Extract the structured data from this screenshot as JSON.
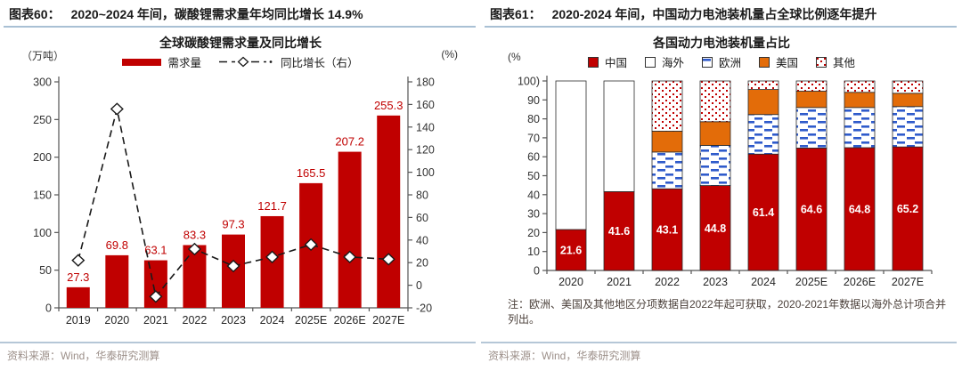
{
  "panels": [
    {
      "header_label": "图表60：",
      "header_title": "2020~2024 年间，碳酸锂需求量年均同比增长 14.9%",
      "source": "资料来源：Wind，华泰研究测算"
    },
    {
      "header_label": "图表61：",
      "header_title": "2020-2024 年间，中国动力电池装机量占全球比例逐年提升",
      "note": "注：欧洲、美国及其他地区分项数据自2022年起可获取，2020-2021年数据以海外总计项合并列出。",
      "source": "资料来源：Wind，华泰研究测算"
    }
  ],
  "colors": {
    "bar_red": "#c00000",
    "us_orange": "#e36c09",
    "eu_blue": "#2f5bcb",
    "header_rule": "#a9c0d4",
    "source_text": "#9c8f89",
    "note_text": "#4a3f39",
    "axis": "#555555",
    "label_white": "#ffffff"
  },
  "chart_data": [
    {
      "id": "lithium-carbonate-demand",
      "type": "bar",
      "title": "全球碳酸锂需求量及同比增长",
      "categories": [
        "2019",
        "2020",
        "2021",
        "2022",
        "2023",
        "2024",
        "2025E",
        "2026E",
        "2027E"
      ],
      "series": [
        {
          "name": "需求量",
          "type": "bar",
          "axis": "left",
          "color": "#c00000",
          "values": [
            27.3,
            69.8,
            63.1,
            83.3,
            97.3,
            121.7,
            165.5,
            207.2,
            255.3
          ]
        },
        {
          "name": "同比增长（右）",
          "type": "line",
          "axis": "right",
          "color": "#1a1a1a",
          "marker": "diamond",
          "values": [
            22,
            156,
            -10,
            32,
            17,
            25,
            36,
            25,
            23
          ]
        }
      ],
      "left_axis": {
        "unit_label": "（万吨）",
        "min": 0,
        "max": 300,
        "step": 50
      },
      "right_axis": {
        "unit_label": "(%)",
        "min": -20,
        "max": 180,
        "step": 20
      },
      "legend_position": "top",
      "grid": false
    },
    {
      "id": "battery-installation-share",
      "type": "stacked-bar",
      "title": "各国动力电池装机量占比",
      "categories": [
        "2020",
        "2021",
        "2022",
        "2023",
        "2024",
        "2025E",
        "2026E",
        "2027E"
      ],
      "series": [
        {
          "name": "中国",
          "style": "solid-red",
          "color": "#c00000",
          "labels": true,
          "values": [
            21.6,
            41.6,
            43.1,
            44.8,
            61.4,
            64.6,
            64.8,
            65.2
          ]
        },
        {
          "name": "海外",
          "style": "solid-white",
          "color": "#ffffff",
          "values": [
            78.4,
            58.4,
            0,
            0,
            0,
            0,
            0,
            0
          ]
        },
        {
          "name": "欧洲",
          "style": "blue-dash",
          "color": "#2f5bcb",
          "values": [
            0,
            0,
            19.4,
            21.2,
            20.9,
            21.4,
            21.2,
            21.3
          ]
        },
        {
          "name": "美国",
          "style": "solid-orange",
          "color": "#e36c09",
          "values": [
            0,
            0,
            11.0,
            12.5,
            13.2,
            8.6,
            8.0,
            7.0
          ]
        },
        {
          "name": "其他",
          "style": "red-dots",
          "color": "#c00000",
          "values": [
            0,
            0,
            26.5,
            21.5,
            4.5,
            5.4,
            6.0,
            6.5
          ]
        }
      ],
      "y_axis": {
        "unit_label": "(%",
        "min": 0,
        "max": 100,
        "step": 10,
        "first_tick_suffix": ")"
      },
      "legend_position": "top",
      "grid": false
    }
  ]
}
